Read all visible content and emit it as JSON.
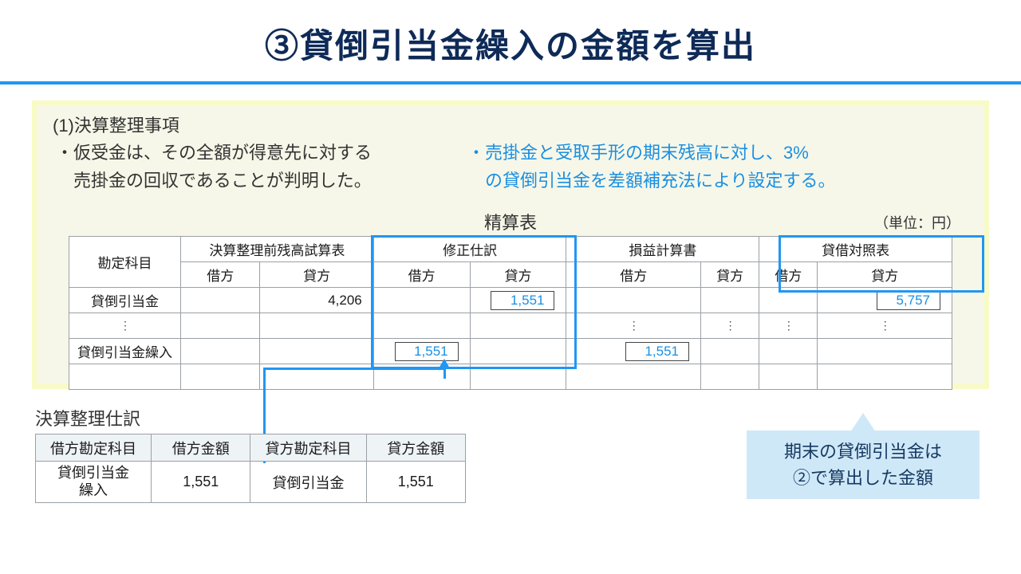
{
  "title": "③貸倒引当金繰入の金額を算出",
  "section": {
    "heading": "(1)決算整理事項",
    "bullet_a": "・仮受金は、その全額が得意先に対する\n　売掛金の回収であることが判明した。",
    "bullet_b": "・売掛金と受取手形の期末残高に対し、3%\n　の貸倒引当金を差額補充法により設定する。"
  },
  "worksheet": {
    "title": "精算表",
    "unit": "（単位：円）",
    "col_account": "勘定科目",
    "groups": [
      "決算整理前残高試算表",
      "修正仕訳",
      "損益計算書",
      "貸借対照表"
    ],
    "dr": "借方",
    "cr": "貸方",
    "rows": [
      {
        "account": "貸倒引当金",
        "tb_dr": "",
        "tb_cr": "4,206",
        "adj_dr": "",
        "adj_cr_box": "1,551",
        "pl_dr": "",
        "pl_cr": "",
        "bs_dr": "",
        "bs_cr_box": "5,757"
      },
      {
        "account": "⋮",
        "dots": true
      },
      {
        "account": "貸倒引当金繰入",
        "tb_dr": "",
        "tb_cr": "",
        "adj_dr_box": "1,551",
        "adj_cr": "",
        "pl_dr_box": "1,551",
        "pl_cr": "",
        "bs_dr": "",
        "bs_cr": ""
      }
    ]
  },
  "journal": {
    "title": "決算整理仕訳",
    "headers": [
      "借方勘定科目",
      "借方金額",
      "貸方勘定科目",
      "貸方金額"
    ],
    "row": {
      "dr_acc_l1": "貸倒引当金",
      "dr_acc_l2": "繰入",
      "dr_amt": "1,551",
      "cr_acc": "貸倒引当金",
      "cr_amt": "1,551"
    }
  },
  "callout": "期末の貸倒引当金は\n②で算出した金額"
}
